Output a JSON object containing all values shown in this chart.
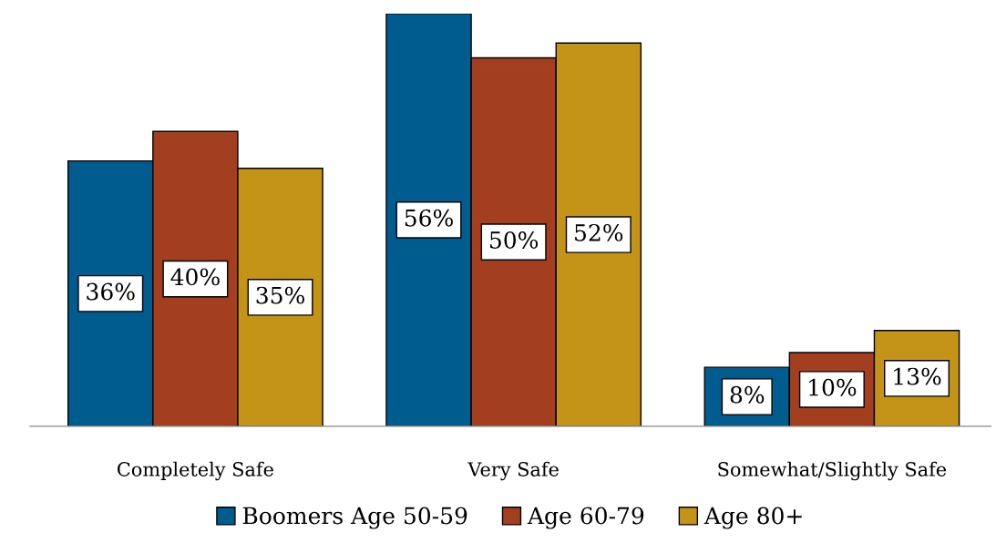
{
  "chart_data": {
    "type": "bar",
    "categories": [
      "Completely Safe",
      "Very Safe",
      "Somewhat/Slightly Safe"
    ],
    "series": [
      {
        "name": "Boomers Age 50-59",
        "color": "#005b8f",
        "values": [
          36,
          56,
          8
        ],
        "value_labels": [
          "36%",
          "56%",
          "8%"
        ]
      },
      {
        "name": "Age 60-79",
        "color": "#a33f1f",
        "values": [
          40,
          50,
          10
        ],
        "value_labels": [
          "40%",
          "50%",
          "10%"
        ]
      },
      {
        "name": "Age 80+",
        "color": "#c49419",
        "values": [
          35,
          52,
          13
        ],
        "value_labels": [
          "35%",
          "52%",
          "13%"
        ]
      }
    ],
    "legend": "bottom",
    "grid": false
  }
}
